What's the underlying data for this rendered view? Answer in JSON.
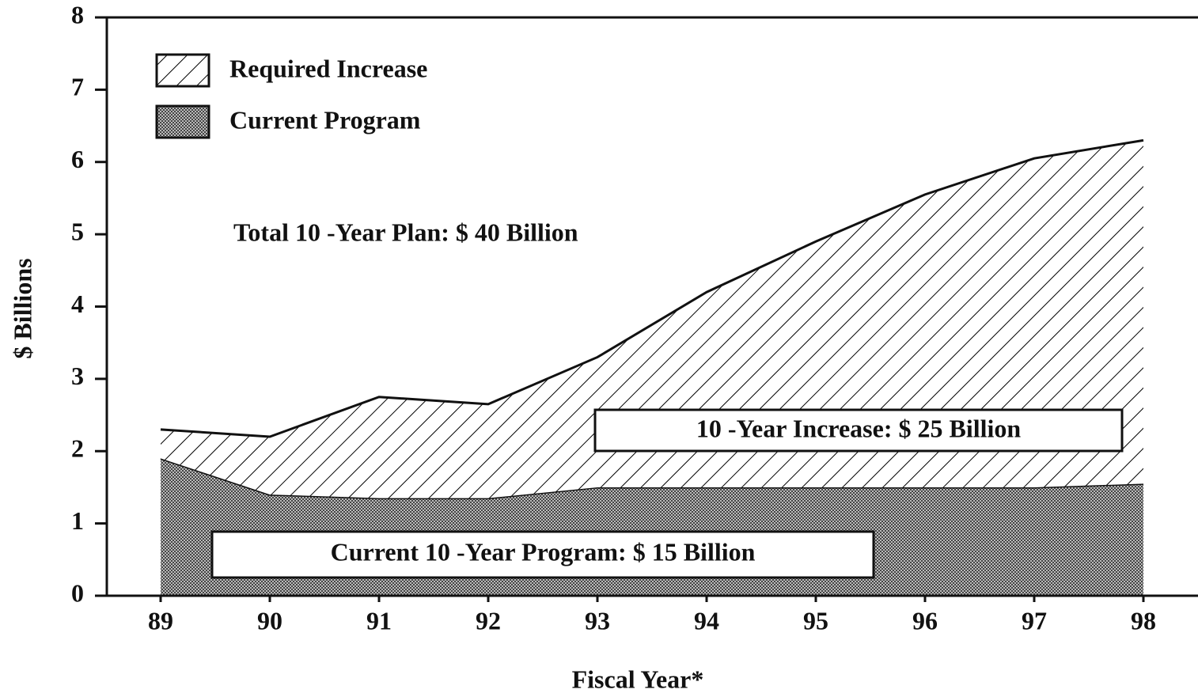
{
  "chart_data": {
    "type": "stacked_area",
    "x_label": "Fiscal Year*",
    "y_label": "$ Billions",
    "categories": [
      "89",
      "90",
      "91",
      "92",
      "93",
      "94",
      "95",
      "96",
      "97",
      "98"
    ],
    "series": [
      {
        "name": "Current Program",
        "color": "#444444",
        "pattern": "dots",
        "values": [
          1.9,
          1.4,
          1.35,
          1.35,
          1.5,
          1.5,
          1.5,
          1.5,
          1.5,
          1.55
        ]
      },
      {
        "name": "Required Increase",
        "color": "#000000",
        "pattern": "hatch",
        "values": [
          0.4,
          0.8,
          1.4,
          1.3,
          1.8,
          2.7,
          3.4,
          4.05,
          4.55,
          4.75
        ]
      }
    ],
    "ylim": [
      0,
      8
    ],
    "yticks": [
      0,
      1,
      2,
      3,
      4,
      5,
      6,
      7,
      8
    ],
    "annotations": [
      "Total 10 -Year Plan:  $ 40 Billion",
      "10 -Year Increase:  $ 25 Billion",
      "Current 10 -Year Program:  $ 15 Billion"
    ],
    "grid": false,
    "legend": "upper left"
  }
}
